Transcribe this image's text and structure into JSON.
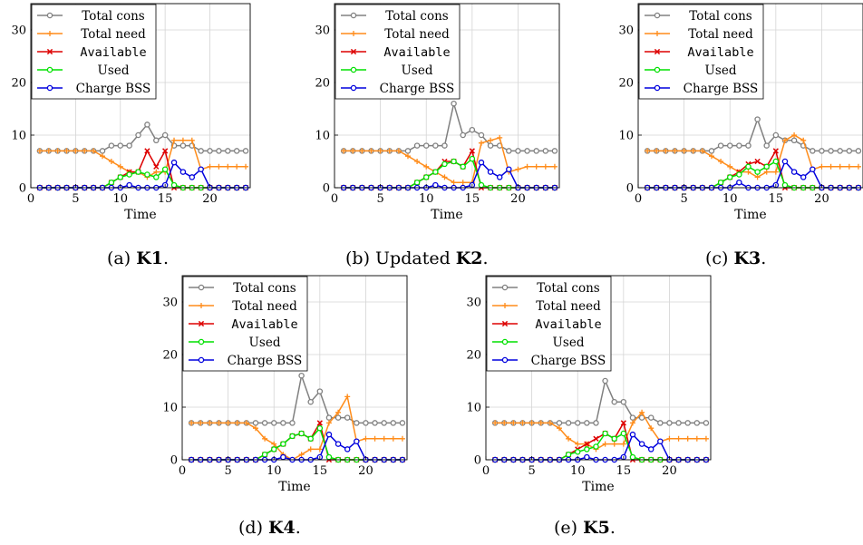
{
  "legend_font_note": "",
  "charts": [
    {
      "caption_prefix": "(a) ",
      "caption_bold": "K1",
      "caption_suffix": "."
    },
    {
      "caption_prefix": "(b) Updated ",
      "caption_bold": "K2",
      "caption_suffix": "."
    },
    {
      "caption_prefix": "(c) ",
      "caption_bold": "K3",
      "caption_suffix": "."
    },
    {
      "caption_prefix": "(d) ",
      "caption_bold": "K4",
      "caption_suffix": "."
    },
    {
      "caption_prefix": "(e) ",
      "caption_bold": "K5",
      "caption_suffix": "."
    }
  ],
  "chart_data": [
    {
      "type": "line",
      "xlabel": "Time",
      "ylabel": "",
      "xlim": [
        0,
        24.5
      ],
      "ylim": [
        0,
        35
      ],
      "xticks": [
        0,
        5,
        10,
        15,
        20
      ],
      "yticks": [
        0,
        10,
        20,
        30
      ],
      "grid": true,
      "legend": "top-left",
      "x": [
        1,
        2,
        3,
        4,
        5,
        6,
        7,
        8,
        9,
        10,
        11,
        12,
        13,
        14,
        15,
        16,
        17,
        18,
        19,
        20,
        21,
        22,
        23,
        24
      ],
      "series": [
        {
          "name": "Total cons",
          "color": "#808080",
          "marker": "circle-open",
          "values": [
            7,
            7,
            7,
            7,
            7,
            7,
            7,
            7,
            8,
            8,
            8,
            10,
            12,
            9,
            10,
            8,
            8,
            8,
            7,
            7,
            7,
            7,
            7,
            7
          ]
        },
        {
          "name": "Total need",
          "color": "#ff8c1a",
          "marker": "plus",
          "values": [
            7,
            7,
            7,
            7,
            7,
            7,
            7,
            6,
            5,
            4,
            3,
            3,
            2,
            3,
            3,
            9,
            9,
            9,
            3.5,
            4,
            4,
            4,
            4,
            4
          ]
        },
        {
          "name": "Available",
          "color": "#dd0000",
          "marker": "cross",
          "values": [
            0,
            0,
            0,
            0,
            0,
            0,
            0,
            0,
            1,
            2,
            3,
            3,
            7,
            4,
            7,
            0,
            0,
            0,
            0,
            0,
            0,
            0,
            0,
            0
          ]
        },
        {
          "name": "Used",
          "color": "#00e000",
          "marker": "circle-open",
          "values": [
            0,
            0,
            0,
            0,
            0,
            0,
            0,
            0,
            1,
            2,
            2.5,
            3,
            2.5,
            2,
            3.5,
            0.5,
            0,
            0,
            0,
            0,
            0,
            0,
            0,
            0
          ]
        },
        {
          "name": "Charge BSS",
          "color": "#0000dd",
          "marker": "circle-open",
          "values": [
            0,
            0,
            0,
            0,
            0,
            0,
            0,
            0,
            0,
            0,
            0.5,
            0,
            0,
            0,
            0.5,
            4.8,
            3,
            2,
            3.5,
            0,
            0,
            0,
            0,
            0
          ]
        }
      ]
    },
    {
      "type": "line",
      "xlabel": "Time",
      "ylabel": "",
      "xlim": [
        0,
        24.5
      ],
      "ylim": [
        0,
        35
      ],
      "xticks": [
        0,
        5,
        10,
        15,
        20
      ],
      "yticks": [
        0,
        10,
        20,
        30
      ],
      "grid": true,
      "legend": "top-left",
      "x": [
        1,
        2,
        3,
        4,
        5,
        6,
        7,
        8,
        9,
        10,
        11,
        12,
        13,
        14,
        15,
        16,
        17,
        18,
        19,
        20,
        21,
        22,
        23,
        24
      ],
      "series": [
        {
          "name": "Total cons",
          "color": "#808080",
          "marker": "circle-open",
          "values": [
            7,
            7,
            7,
            7,
            7,
            7,
            7,
            7,
            8,
            8,
            8,
            8,
            16,
            10,
            11,
            10,
            8,
            8,
            7,
            7,
            7,
            7,
            7,
            7
          ]
        },
        {
          "name": "Total need",
          "color": "#ff8c1a",
          "marker": "plus",
          "values": [
            7,
            7,
            7,
            7,
            7,
            7,
            7,
            6,
            5,
            4,
            3,
            2,
            1,
            1,
            1,
            8.5,
            9,
            9.5,
            3,
            3.5,
            4,
            4,
            4,
            4
          ]
        },
        {
          "name": "Available",
          "color": "#dd0000",
          "marker": "cross",
          "values": [
            0,
            0,
            0,
            0,
            0,
            0,
            0,
            0,
            1,
            2,
            3,
            5,
            5,
            4,
            7,
            0,
            0,
            0,
            0,
            0,
            0,
            0,
            0,
            0
          ]
        },
        {
          "name": "Used",
          "color": "#00e000",
          "marker": "circle-open",
          "values": [
            0,
            0,
            0,
            0,
            0,
            0,
            0,
            0,
            1,
            2,
            3,
            4.5,
            5,
            4,
            5.5,
            0.5,
            0,
            0,
            0,
            0,
            0,
            0,
            0,
            0
          ]
        },
        {
          "name": "Charge BSS",
          "color": "#0000dd",
          "marker": "circle-open",
          "values": [
            0,
            0,
            0,
            0,
            0,
            0,
            0,
            0,
            0,
            0,
            0.5,
            0,
            0,
            0,
            0.5,
            4.8,
            3,
            2,
            3.5,
            0,
            0,
            0,
            0,
            0
          ]
        }
      ]
    },
    {
      "type": "line",
      "xlabel": "Time",
      "ylabel": "",
      "xlim": [
        0,
        24.5
      ],
      "ylim": [
        0,
        35
      ],
      "xticks": [
        0,
        5,
        10,
        15,
        20
      ],
      "yticks": [
        0,
        10,
        20,
        30
      ],
      "grid": true,
      "legend": "top-left",
      "x": [
        1,
        2,
        3,
        4,
        5,
        6,
        7,
        8,
        9,
        10,
        11,
        12,
        13,
        14,
        15,
        16,
        17,
        18,
        19,
        20,
        21,
        22,
        23,
        24
      ],
      "series": [
        {
          "name": "Total cons",
          "color": "#808080",
          "marker": "circle-open",
          "values": [
            7,
            7,
            7,
            7,
            7,
            7,
            7,
            7,
            8,
            8,
            8,
            8,
            13,
            8,
            10,
            9,
            9,
            8,
            7,
            7,
            7,
            7,
            7,
            7
          ]
        },
        {
          "name": "Total need",
          "color": "#ff8c1a",
          "marker": "plus",
          "values": [
            7,
            7,
            7,
            7,
            7,
            7,
            7,
            6,
            5,
            4,
            3,
            3,
            2,
            3,
            3,
            9,
            10,
            9,
            3.5,
            4,
            4,
            4,
            4,
            4
          ]
        },
        {
          "name": "Available",
          "color": "#dd0000",
          "marker": "cross",
          "values": [
            0,
            0,
            0,
            0,
            0,
            0,
            0,
            0,
            1,
            2,
            3,
            4.5,
            5,
            4,
            7,
            0,
            0,
            0,
            0,
            0,
            0,
            0,
            0,
            0
          ]
        },
        {
          "name": "Used",
          "color": "#00e000",
          "marker": "circle-open",
          "values": [
            0,
            0,
            0,
            0,
            0,
            0,
            0,
            0,
            1,
            2,
            2.5,
            4,
            3,
            4,
            5,
            0.5,
            0,
            0,
            0,
            0,
            0,
            0,
            0,
            0
          ]
        },
        {
          "name": "Charge BSS",
          "color": "#0000dd",
          "marker": "circle-open",
          "values": [
            0,
            0,
            0,
            0,
            0,
            0,
            0,
            0,
            0,
            0,
            1,
            0,
            0,
            0,
            0.5,
            5,
            3,
            2,
            3.5,
            0,
            0,
            0,
            0,
            0
          ]
        }
      ]
    },
    {
      "type": "line",
      "xlabel": "Time",
      "ylabel": "",
      "xlim": [
        0,
        24.5
      ],
      "ylim": [
        0,
        35
      ],
      "xticks": [
        0,
        5,
        10,
        15,
        20
      ],
      "yticks": [
        0,
        10,
        20,
        30
      ],
      "grid": true,
      "legend": "top-left",
      "x": [
        1,
        2,
        3,
        4,
        5,
        6,
        7,
        8,
        9,
        10,
        11,
        12,
        13,
        14,
        15,
        16,
        17,
        18,
        19,
        20,
        21,
        22,
        23,
        24
      ],
      "series": [
        {
          "name": "Total cons",
          "color": "#808080",
          "marker": "circle-open",
          "values": [
            7,
            7,
            7,
            7,
            7,
            7,
            7,
            7,
            7,
            7,
            7,
            7,
            16,
            11,
            13,
            8,
            8,
            8,
            7,
            7,
            7,
            7,
            7,
            7
          ]
        },
        {
          "name": "Total need",
          "color": "#ff8c1a",
          "marker": "plus",
          "values": [
            7,
            7,
            7,
            7,
            7,
            7,
            7,
            6,
            4,
            3,
            1,
            0,
            1,
            2,
            2,
            7,
            9,
            12,
            3.5,
            4,
            4,
            4,
            4,
            4
          ]
        },
        {
          "name": "Available",
          "color": "#dd0000",
          "marker": "cross",
          "values": [
            0,
            0,
            0,
            0,
            0,
            0,
            0,
            0,
            1,
            2,
            3,
            4.5,
            5,
            4,
            7,
            0,
            0,
            0,
            0,
            0,
            0,
            0,
            0,
            0
          ]
        },
        {
          "name": "Used",
          "color": "#00e000",
          "marker": "circle-open",
          "values": [
            0,
            0,
            0,
            0,
            0,
            0,
            0,
            0,
            1,
            2,
            3,
            4.5,
            5,
            4,
            6,
            0.5,
            0,
            0,
            0,
            0,
            0,
            0,
            0,
            0
          ]
        },
        {
          "name": "Charge BSS",
          "color": "#0000dd",
          "marker": "circle-open",
          "values": [
            0,
            0,
            0,
            0,
            0,
            0,
            0,
            0,
            0,
            0,
            0.5,
            0,
            0,
            0,
            0.5,
            4.8,
            3,
            2,
            3.5,
            0,
            0,
            0,
            0,
            0
          ]
        }
      ]
    },
    {
      "type": "line",
      "xlabel": "Time",
      "ylabel": "",
      "xlim": [
        0,
        24.5
      ],
      "ylim": [
        0,
        35
      ],
      "xticks": [
        0,
        5,
        10,
        15,
        20
      ],
      "yticks": [
        0,
        10,
        20,
        30
      ],
      "grid": true,
      "legend": "top-left",
      "x": [
        1,
        2,
        3,
        4,
        5,
        6,
        7,
        8,
        9,
        10,
        11,
        12,
        13,
        14,
        15,
        16,
        17,
        18,
        19,
        20,
        21,
        22,
        23,
        24
      ],
      "series": [
        {
          "name": "Total cons",
          "color": "#808080",
          "marker": "circle-open",
          "values": [
            7,
            7,
            7,
            7,
            7,
            7,
            7,
            7,
            7,
            7,
            7,
            7,
            15,
            11,
            11,
            8,
            8,
            8,
            7,
            7,
            7,
            7,
            7,
            7
          ]
        },
        {
          "name": "Total need",
          "color": "#ff8c1a",
          "marker": "plus",
          "values": [
            7,
            7,
            7,
            7,
            7,
            7,
            7,
            6,
            4,
            3,
            3,
            2,
            3,
            3,
            3,
            7,
            9,
            6,
            3.5,
            4,
            4,
            4,
            4,
            4
          ]
        },
        {
          "name": "Available",
          "color": "#dd0000",
          "marker": "cross",
          "values": [
            0,
            0,
            0,
            0,
            0,
            0,
            0,
            0,
            1,
            2,
            3,
            4,
            5,
            4,
            7,
            0,
            0,
            0,
            0,
            0,
            0,
            0,
            0,
            0
          ]
        },
        {
          "name": "Used",
          "color": "#00e000",
          "marker": "circle-open",
          "values": [
            0,
            0,
            0,
            0,
            0,
            0,
            0,
            0,
            1,
            1.5,
            2,
            2.5,
            5,
            4,
            5,
            0.5,
            0,
            0,
            0,
            0,
            0,
            0,
            0,
            0
          ]
        },
        {
          "name": "Charge BSS",
          "color": "#0000dd",
          "marker": "circle-open",
          "values": [
            0,
            0,
            0,
            0,
            0,
            0,
            0,
            0,
            0,
            0,
            0.5,
            0,
            0,
            0,
            0.5,
            4.8,
            3,
            2,
            3.5,
            0,
            0,
            0,
            0,
            0
          ]
        }
      ]
    }
  ]
}
